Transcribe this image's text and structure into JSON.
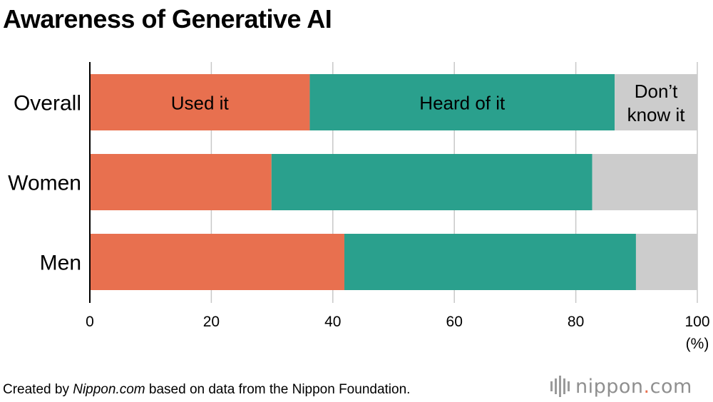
{
  "chart_data": {
    "type": "bar",
    "orientation": "horizontal",
    "stacked": true,
    "title": "Awareness of Generative AI",
    "categories": [
      "Overall",
      "Women",
      "Men"
    ],
    "series": [
      {
        "name": "Used it",
        "values": [
          36.2,
          29.9,
          41.9
        ],
        "color": "#e8704f"
      },
      {
        "name": "Heard of it",
        "values": [
          50.2,
          52.8,
          48.0
        ],
        "color": "#2aa08d"
      },
      {
        "name": "Don’t know it",
        "values": [
          13.6,
          17.3,
          10.1
        ],
        "color": "#cccccc"
      }
    ],
    "xlim": [
      0,
      100
    ],
    "xticks": [
      "0",
      "20",
      "40",
      "60",
      "80",
      "100"
    ],
    "xunit": "(%)",
    "grid": true
  },
  "footer": {
    "prefix": "Created by ",
    "source": "Nippon.com",
    "suffix": " based on data from the Nippon Foundation."
  },
  "logo": {
    "name": "nippon",
    "dot": ".",
    "tld": "com"
  }
}
